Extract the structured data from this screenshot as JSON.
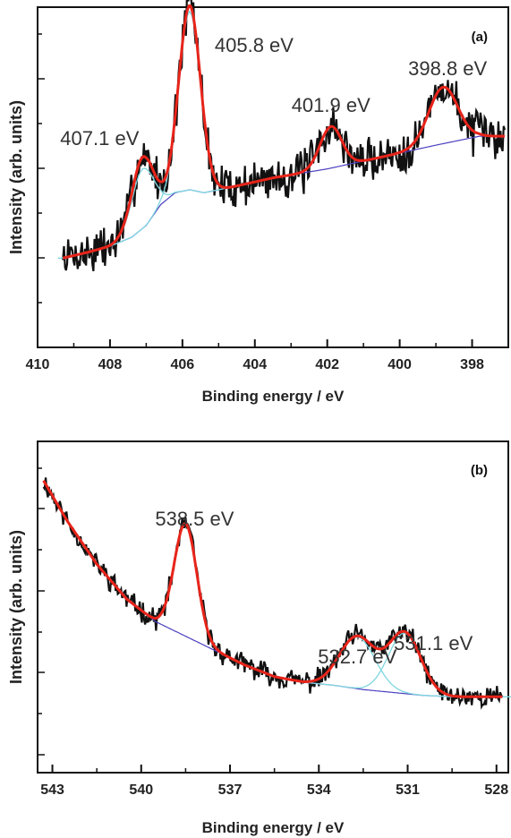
{
  "chart_data": [
    {
      "type": "line",
      "panel_label": "(a)",
      "xlabel": "Binding energy / eV",
      "ylabel": "Intensity (arb. units)",
      "xlim": [
        410,
        397
      ],
      "ylim": [
        0,
        100
      ],
      "x_ticks": [
        410,
        408,
        406,
        404,
        402,
        400,
        398
      ],
      "x_tick_labels": [
        "410",
        "408",
        "406",
        "404",
        "402",
        "400",
        "398"
      ],
      "y_ticks_unlabeled": true,
      "colors": {
        "raw": "#111111",
        "envelope": "#e8241a",
        "background": "#4a3fc0",
        "component": "#7fd6e0"
      },
      "peak_annotations": [
        {
          "label": "407.1 eV",
          "x": 407.1
        },
        {
          "label": "405.8 eV",
          "x": 405.8
        },
        {
          "label": "401.9 eV",
          "x": 401.9
        },
        {
          "label": "398.8 eV",
          "x": 398.8
        }
      ],
      "background_points": {
        "x": [
          409.3,
          408.6,
          408.0,
          407.4,
          407.0,
          406.6,
          406.2,
          405.8,
          405.4,
          404.6,
          403.5,
          402.0,
          400.5,
          399.0,
          397.8
        ],
        "y": [
          21,
          23,
          25,
          28,
          32,
          39,
          43,
          44,
          43,
          45,
          48,
          51,
          55,
          59,
          62
        ]
      },
      "components": [
        {
          "center": 407.1,
          "height": 20,
          "width": 0.3
        },
        {
          "center": 405.8,
          "height": 60,
          "width": 0.3
        }
      ],
      "envelope_peaks": [
        {
          "center": 407.1,
          "height": 24,
          "width": 0.3
        },
        {
          "center": 405.8,
          "height": 62,
          "width": 0.3
        },
        {
          "center": 401.9,
          "height": 14,
          "width": 0.3
        },
        {
          "center": 398.8,
          "height": 19,
          "width": 0.4
        }
      ],
      "noise": 6,
      "seed": 7
    },
    {
      "type": "line",
      "panel_label": "(b)",
      "xlabel": "Binding energy / eV",
      "ylabel": "Intensity (arb. units)",
      "xlim": [
        543.5,
        527.6
      ],
      "ylim": [
        0,
        100
      ],
      "x_ticks": [
        543,
        540,
        537,
        534,
        531,
        528
      ],
      "x_tick_labels": [
        "543",
        "540",
        "537",
        "534",
        "531",
        "528"
      ],
      "y_ticks_unlabeled": true,
      "colors": {
        "raw": "#111111",
        "envelope": "#e8241a",
        "background": "#4a3fc0",
        "component": "#7fd6e0"
      },
      "peak_annotations": [
        {
          "label": "538.5 eV",
          "x": 538.5
        },
        {
          "label": "532.7 eV",
          "x": 532.7
        },
        {
          "label": "531.1 eV",
          "x": 531.1
        }
      ],
      "background_points": {
        "x": [
          543.3,
          542.5,
          541.5,
          540.5,
          539.5,
          538.5,
          537.5,
          536.5,
          535.5,
          534.5,
          533.5,
          532.5,
          531.5,
          530.5,
          529.5,
          528.5,
          527.8
        ],
        "y": [
          92,
          78,
          63,
          51,
          43,
          38,
          33,
          28,
          24,
          22,
          21,
          19.5,
          18.5,
          17.5,
          17,
          17,
          17
        ]
      },
      "components": [
        {
          "center": 538.5,
          "height": 39,
          "width": 0.38
        },
        {
          "center": 532.7,
          "height": 18,
          "width": 0.6
        },
        {
          "center": 531.1,
          "height": 21,
          "width": 0.55
        }
      ],
      "envelope_peaks": [
        {
          "center": 538.5,
          "height": 39,
          "width": 0.38
        },
        {
          "center": 532.7,
          "height": 18,
          "width": 0.6
        },
        {
          "center": 531.1,
          "height": 21,
          "width": 0.55
        }
      ],
      "noise": 3,
      "seed": 11
    }
  ]
}
